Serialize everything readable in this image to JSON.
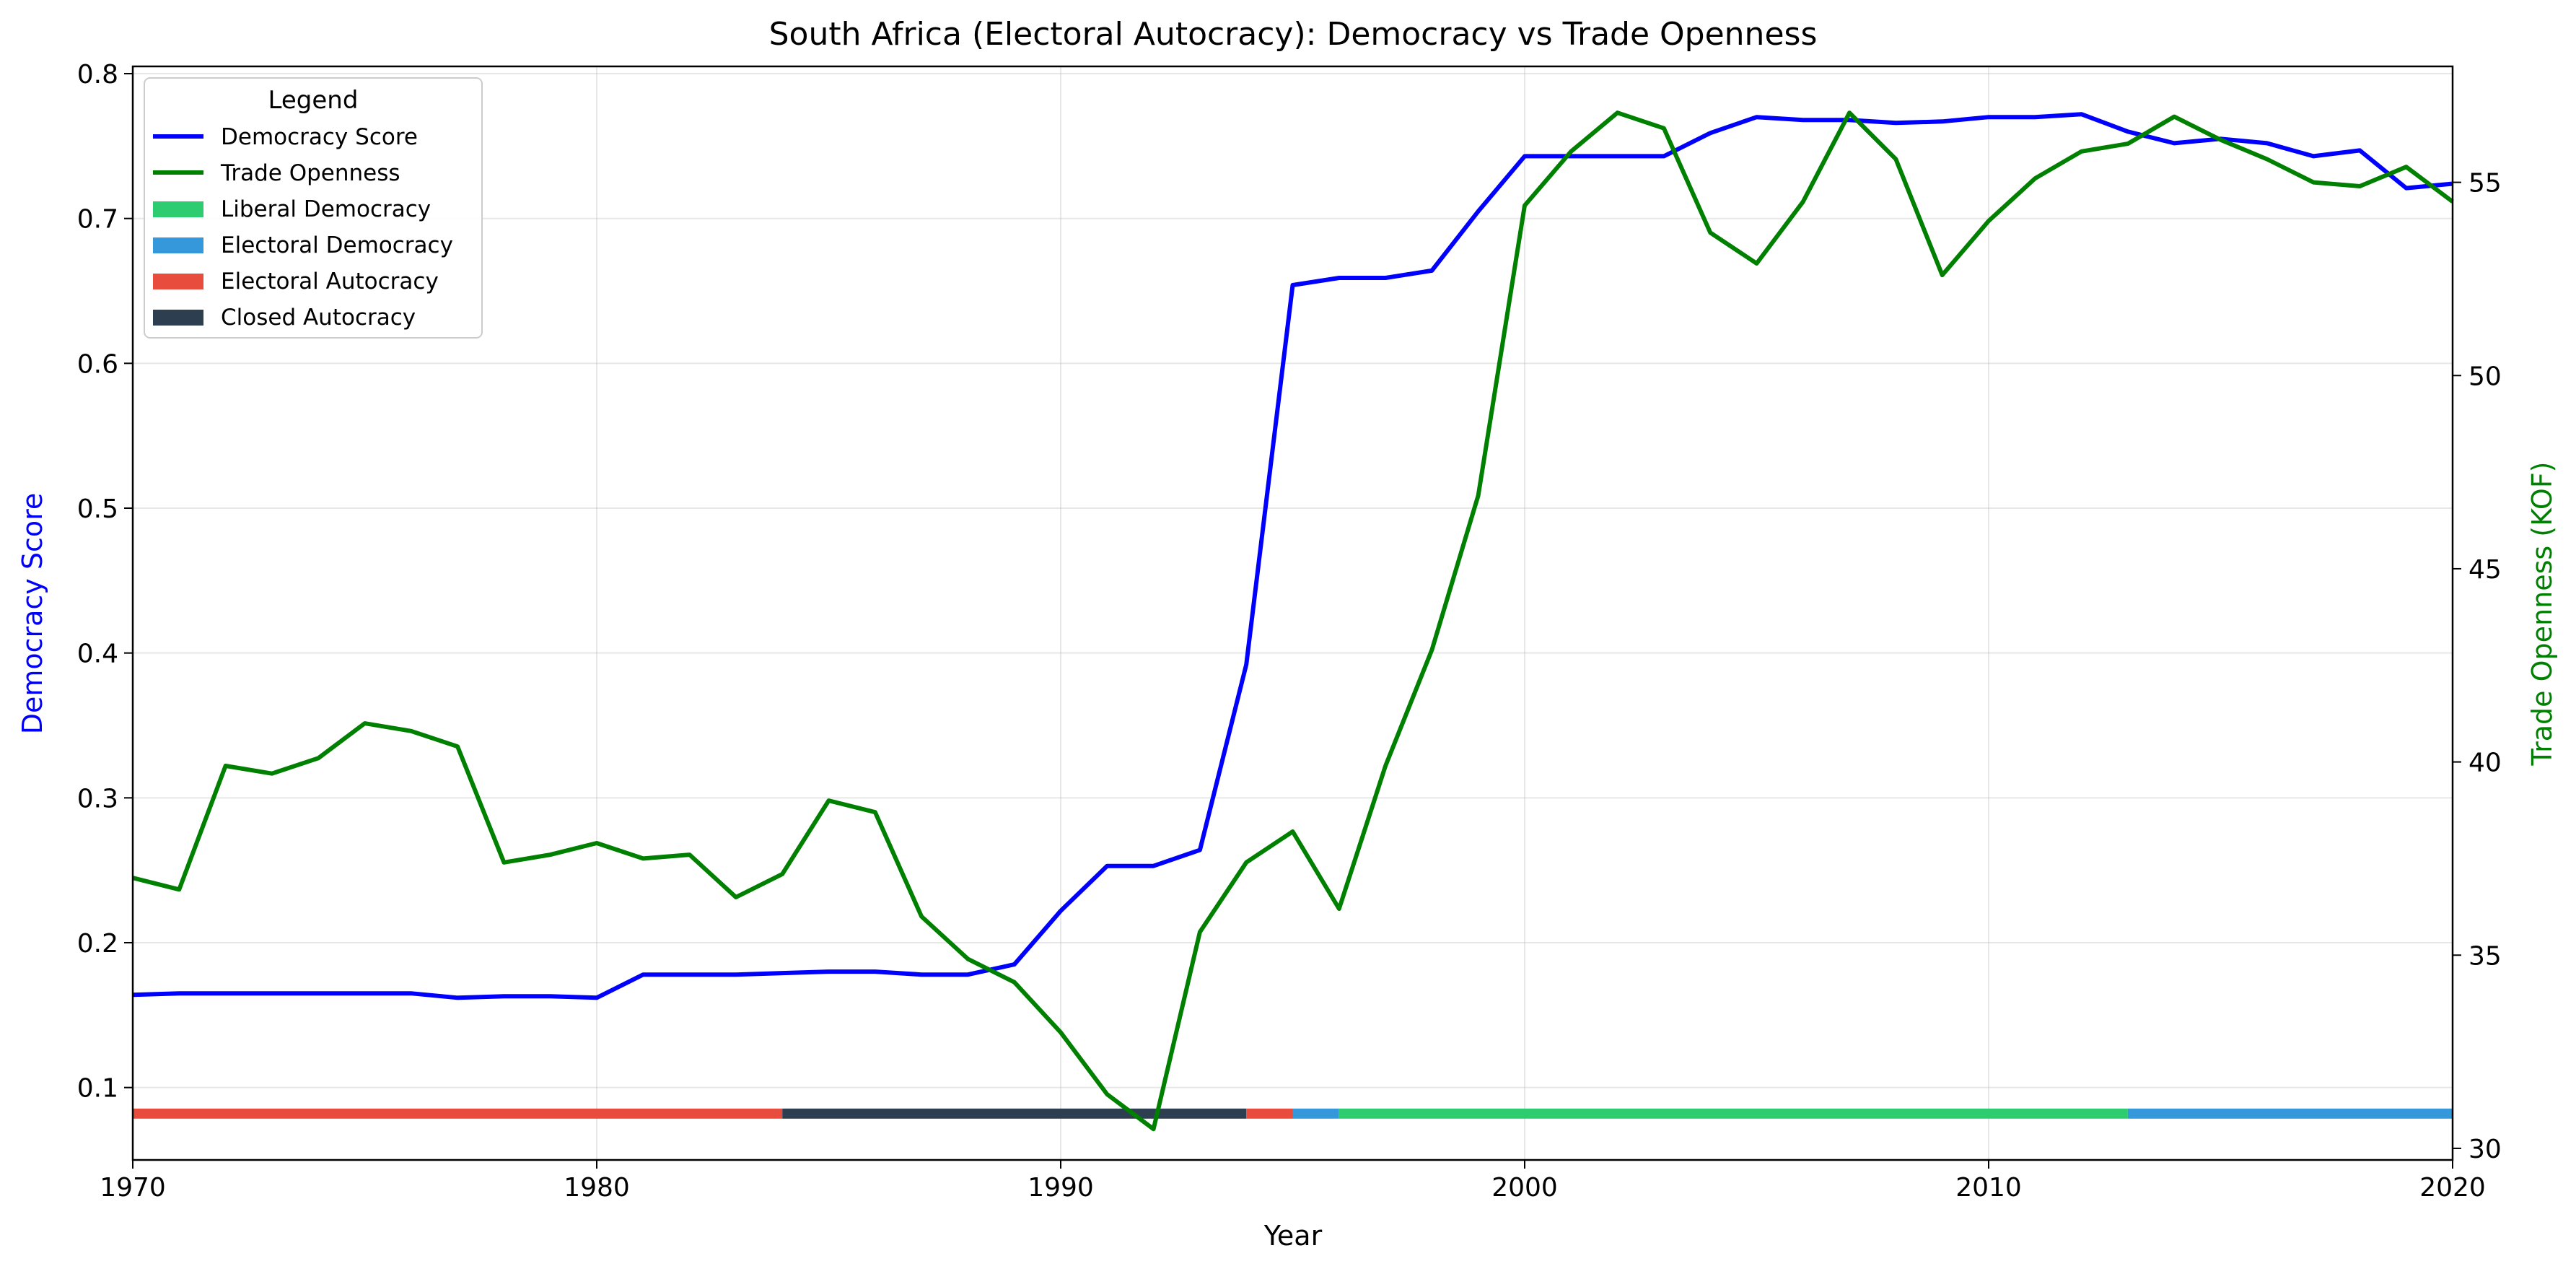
{
  "chart_data": {
    "type": "line",
    "title": "South Africa (Electoral Autocracy): Democracy vs Trade Openness",
    "xlabel": "Year",
    "ylabel_left": "Democracy Score",
    "ylabel_right": "Trade Openness (KOF)",
    "xlim": [
      1970,
      2020
    ],
    "ylim_left": [
      0.05,
      0.805
    ],
    "ylim_right": [
      29.7,
      58
    ],
    "x_ticks": [
      1970,
      1980,
      1990,
      2000,
      2010,
      2020
    ],
    "y_ticks_left": [
      0.1,
      0.2,
      0.3,
      0.4,
      0.5,
      0.6,
      0.7,
      0.8
    ],
    "y_ticks_right": [
      30,
      35,
      40,
      45,
      50,
      55
    ],
    "grid": true,
    "legend": {
      "title": "Legend",
      "position": "top-left",
      "entries": [
        {
          "label": "Democracy Score",
          "kind": "line",
          "color": "#0000ff"
        },
        {
          "label": "Trade Openness",
          "kind": "line",
          "color": "#008000"
        },
        {
          "label": "Liberal Democracy",
          "kind": "patch",
          "color": "#2ecc71"
        },
        {
          "label": "Electoral Democracy",
          "kind": "patch",
          "color": "#3498db"
        },
        {
          "label": "Electoral Autocracy",
          "kind": "patch",
          "color": "#e74c3c"
        },
        {
          "label": "Closed Autocracy",
          "kind": "patch",
          "color": "#2c3e50"
        }
      ]
    },
    "series": [
      {
        "name": "Democracy Score",
        "axis": "left",
        "color": "#0000ff",
        "x": [
          1970,
          1971,
          1972,
          1973,
          1974,
          1975,
          1976,
          1977,
          1978,
          1979,
          1980,
          1981,
          1982,
          1983,
          1984,
          1985,
          1986,
          1987,
          1988,
          1989,
          1990,
          1991,
          1992,
          1993,
          1994,
          1995,
          1996,
          1997,
          1998,
          1999,
          2000,
          2001,
          2002,
          2003,
          2004,
          2005,
          2006,
          2007,
          2008,
          2009,
          2010,
          2011,
          2012,
          2013,
          2014,
          2015,
          2016,
          2017,
          2018,
          2019,
          2020
        ],
        "values": [
          0.164,
          0.165,
          0.165,
          0.165,
          0.165,
          0.165,
          0.165,
          0.162,
          0.163,
          0.163,
          0.162,
          0.178,
          0.178,
          0.178,
          0.179,
          0.18,
          0.18,
          0.178,
          0.178,
          0.185,
          0.222,
          0.253,
          0.253,
          0.264,
          0.392,
          0.654,
          0.659,
          0.659,
          0.664,
          0.705,
          0.743,
          0.743,
          0.743,
          0.743,
          0.759,
          0.77,
          0.768,
          0.768,
          0.766,
          0.767,
          0.77,
          0.77,
          0.772,
          0.76,
          0.752,
          0.755,
          0.752,
          0.743,
          0.747,
          0.721,
          0.724
        ]
      },
      {
        "name": "Trade Openness",
        "axis": "right",
        "color": "#008000",
        "x": [
          1970,
          1971,
          1972,
          1973,
          1974,
          1975,
          1976,
          1977,
          1978,
          1979,
          1980,
          1981,
          1982,
          1983,
          1984,
          1985,
          1986,
          1987,
          1988,
          1989,
          1990,
          1991,
          1992,
          1993,
          1994,
          1995,
          1996,
          1997,
          1998,
          1999,
          2000,
          2001,
          2002,
          2003,
          2004,
          2005,
          2006,
          2007,
          2008,
          2009,
          2010,
          2011,
          2012,
          2013,
          2014,
          2015,
          2016,
          2017,
          2018,
          2019,
          2020
        ],
        "values": [
          37.0,
          36.7,
          39.9,
          39.7,
          40.1,
          41.0,
          40.8,
          40.4,
          37.4,
          37.6,
          37.9,
          37.5,
          37.6,
          36.5,
          37.1,
          39.0,
          38.7,
          36.0,
          34.9,
          34.3,
          33.0,
          31.4,
          30.5,
          35.6,
          37.4,
          38.2,
          36.2,
          39.9,
          42.9,
          46.9,
          54.4,
          55.8,
          56.8,
          56.4,
          53.7,
          52.9,
          54.5,
          56.8,
          55.6,
          52.6,
          54.0,
          55.1,
          55.8,
          56.0,
          56.7,
          56.1,
          55.6,
          55.0,
          54.9,
          55.4,
          54.5
        ]
      }
    ],
    "regime_bar": {
      "y_value": 0.082,
      "segments": [
        {
          "start": 1970,
          "end": 1984,
          "regime": "Electoral Autocracy",
          "color": "#e74c3c"
        },
        {
          "start": 1984,
          "end": 1994,
          "regime": "Closed Autocracy",
          "color": "#2c3e50"
        },
        {
          "start": 1994,
          "end": 1995,
          "regime": "Electoral Autocracy",
          "color": "#e74c3c"
        },
        {
          "start": 1995,
          "end": 1996,
          "regime": "Electoral Democracy",
          "color": "#3498db"
        },
        {
          "start": 1996,
          "end": 2013,
          "regime": "Liberal Democracy",
          "color": "#2ecc71"
        },
        {
          "start": 2013,
          "end": 2020,
          "regime": "Electoral Democracy",
          "color": "#3498db"
        }
      ]
    }
  }
}
